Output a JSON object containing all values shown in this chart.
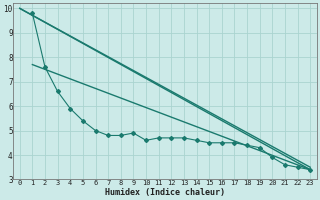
{
  "bg_color": "#cceae8",
  "grid_color": "#aad4d0",
  "line_color": "#1a7a6e",
  "xlabel": "Humidex (Indice chaleur)",
  "xlim": [
    -0.5,
    23.5
  ],
  "ylim": [
    3,
    10.2
  ],
  "yticks": [
    3,
    4,
    5,
    6,
    7,
    8,
    9,
    10
  ],
  "xticks": [
    0,
    1,
    2,
    3,
    4,
    5,
    6,
    7,
    8,
    9,
    10,
    11,
    12,
    13,
    14,
    15,
    16,
    17,
    18,
    19,
    20,
    21,
    22,
    23
  ],
  "lines": [
    {
      "x": [
        1,
        2,
        3,
        4,
        5,
        6,
        7,
        8,
        9,
        10,
        11,
        12,
        13,
        14,
        15,
        16,
        17,
        18,
        19,
        20,
        21,
        22,
        23
      ],
      "y": [
        9.8,
        7.6,
        6.6,
        5.9,
        5.4,
        5.0,
        4.8,
        4.8,
        4.9,
        4.6,
        4.7,
        4.7,
        4.7,
        4.6,
        4.5,
        4.5,
        4.5,
        4.4,
        4.3,
        3.9,
        3.6,
        3.5,
        3.4
      ],
      "marker": "D",
      "markersize": 2.0,
      "linewidth": 0.8,
      "linestyle": "-"
    },
    {
      "x": [
        0,
        23
      ],
      "y": [
        10.0,
        3.4
      ],
      "marker": null,
      "linewidth": 1.0,
      "linestyle": "-"
    },
    {
      "x": [
        0,
        23
      ],
      "y": [
        10.0,
        3.5
      ],
      "marker": null,
      "linewidth": 1.0,
      "linestyle": "-"
    },
    {
      "x": [
        1,
        23
      ],
      "y": [
        7.7,
        3.4
      ],
      "marker": null,
      "linewidth": 1.0,
      "linestyle": "-"
    }
  ]
}
